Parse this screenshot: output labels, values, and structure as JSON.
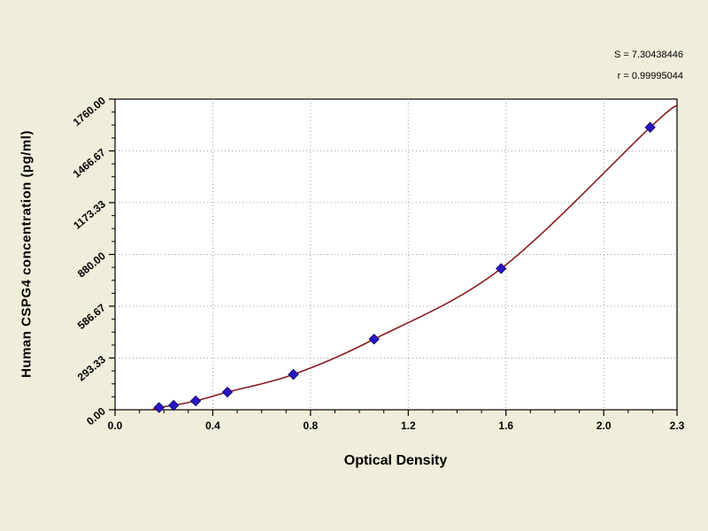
{
  "page": {
    "background": "#f0edda"
  },
  "stats": {
    "line1": "S = 7.30438446",
    "line2": "r = 0.99995044"
  },
  "chart_data": {
    "type": "scatter",
    "title": "",
    "xlabel": "Optical Density",
    "ylabel": "Human CSPG4 concentration (pg/ml)",
    "xlim": [
      0.0,
      2.3
    ],
    "ylim": [
      0,
      1760
    ],
    "x_major_ticks": [
      0.0,
      0.4,
      0.8,
      1.2,
      1.6,
      2.0,
      2.3
    ],
    "x_tick_labels": [
      "0.0",
      "0.4",
      "0.8",
      "1.2",
      "1.6",
      "2.0",
      "2.3"
    ],
    "x_minor_step": 0.1,
    "y_major_ticks": [
      0,
      293.33,
      586.67,
      880,
      1173.33,
      1466.67,
      1760
    ],
    "y_tick_labels": [
      "0.00",
      "293.33",
      "586.67",
      "880.00",
      "1173.33",
      "1466.67",
      "1760.00"
    ],
    "y_minor_divisions": 4,
    "grid": "dotted",
    "legend_position": "none",
    "series": [
      {
        "name": "standard curve fit",
        "type": "line",
        "color": "#8a1c20",
        "anchors": [
          [
            0.15,
            0
          ],
          [
            0.18,
            12.5
          ],
          [
            0.24,
            25
          ],
          [
            0.33,
            50
          ],
          [
            0.46,
            100
          ],
          [
            0.73,
            200
          ],
          [
            1.06,
            400
          ],
          [
            1.58,
            800
          ],
          [
            2.19,
            1600
          ],
          [
            2.3,
            1725
          ]
        ]
      },
      {
        "name": "standard points",
        "type": "scatter",
        "marker": "diamond",
        "color": "#2a14c8",
        "marker_stroke": "#140a6e",
        "points": [
          [
            0.18,
            12.5
          ],
          [
            0.24,
            25
          ],
          [
            0.33,
            50
          ],
          [
            0.46,
            100
          ],
          [
            0.73,
            200
          ],
          [
            1.06,
            400
          ],
          [
            1.58,
            800
          ],
          [
            2.19,
            1600
          ]
        ]
      }
    ],
    "styles": {
      "grid_color": "#9a9aa8",
      "plot_bg": "#ffffff",
      "axis_color": "#000000",
      "tick_label_size": 11,
      "page_bg": "#f0edda"
    }
  }
}
